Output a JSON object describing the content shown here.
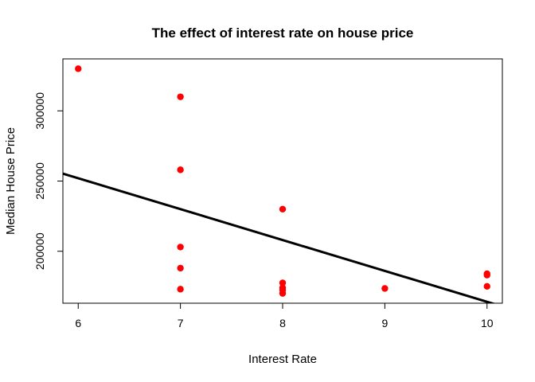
{
  "chart_data": {
    "type": "scatter",
    "title": "The effect of interest rate on house price",
    "xlabel": "Interest Rate",
    "ylabel": "Median House Price",
    "xlim": [
      5.85,
      10.15
    ],
    "ylim": [
      163000,
      337000
    ],
    "x_ticks": [
      6,
      7,
      8,
      9,
      10
    ],
    "y_ticks": [
      200000,
      250000,
      300000
    ],
    "point_color": "#ff0000",
    "line_color": "#000000",
    "grid": false,
    "series": [
      {
        "points": [
          {
            "x": 6,
            "y": 330000
          },
          {
            "x": 7,
            "y": 310000
          },
          {
            "x": 7,
            "y": 258000
          },
          {
            "x": 7,
            "y": 203000
          },
          {
            "x": 7,
            "y": 188000
          },
          {
            "x": 7,
            "y": 173000
          },
          {
            "x": 8,
            "y": 230000
          },
          {
            "x": 8,
            "y": 177500
          },
          {
            "x": 8,
            "y": 174000
          },
          {
            "x": 8,
            "y": 172500
          },
          {
            "x": 8,
            "y": 170000
          },
          {
            "x": 9,
            "y": 173500
          },
          {
            "x": 10,
            "y": 184000
          },
          {
            "x": 10,
            "y": 183000
          },
          {
            "x": 10,
            "y": 175000
          }
        ]
      }
    ],
    "regression_line": {
      "intercept": 384000,
      "slope": -22000
    }
  }
}
